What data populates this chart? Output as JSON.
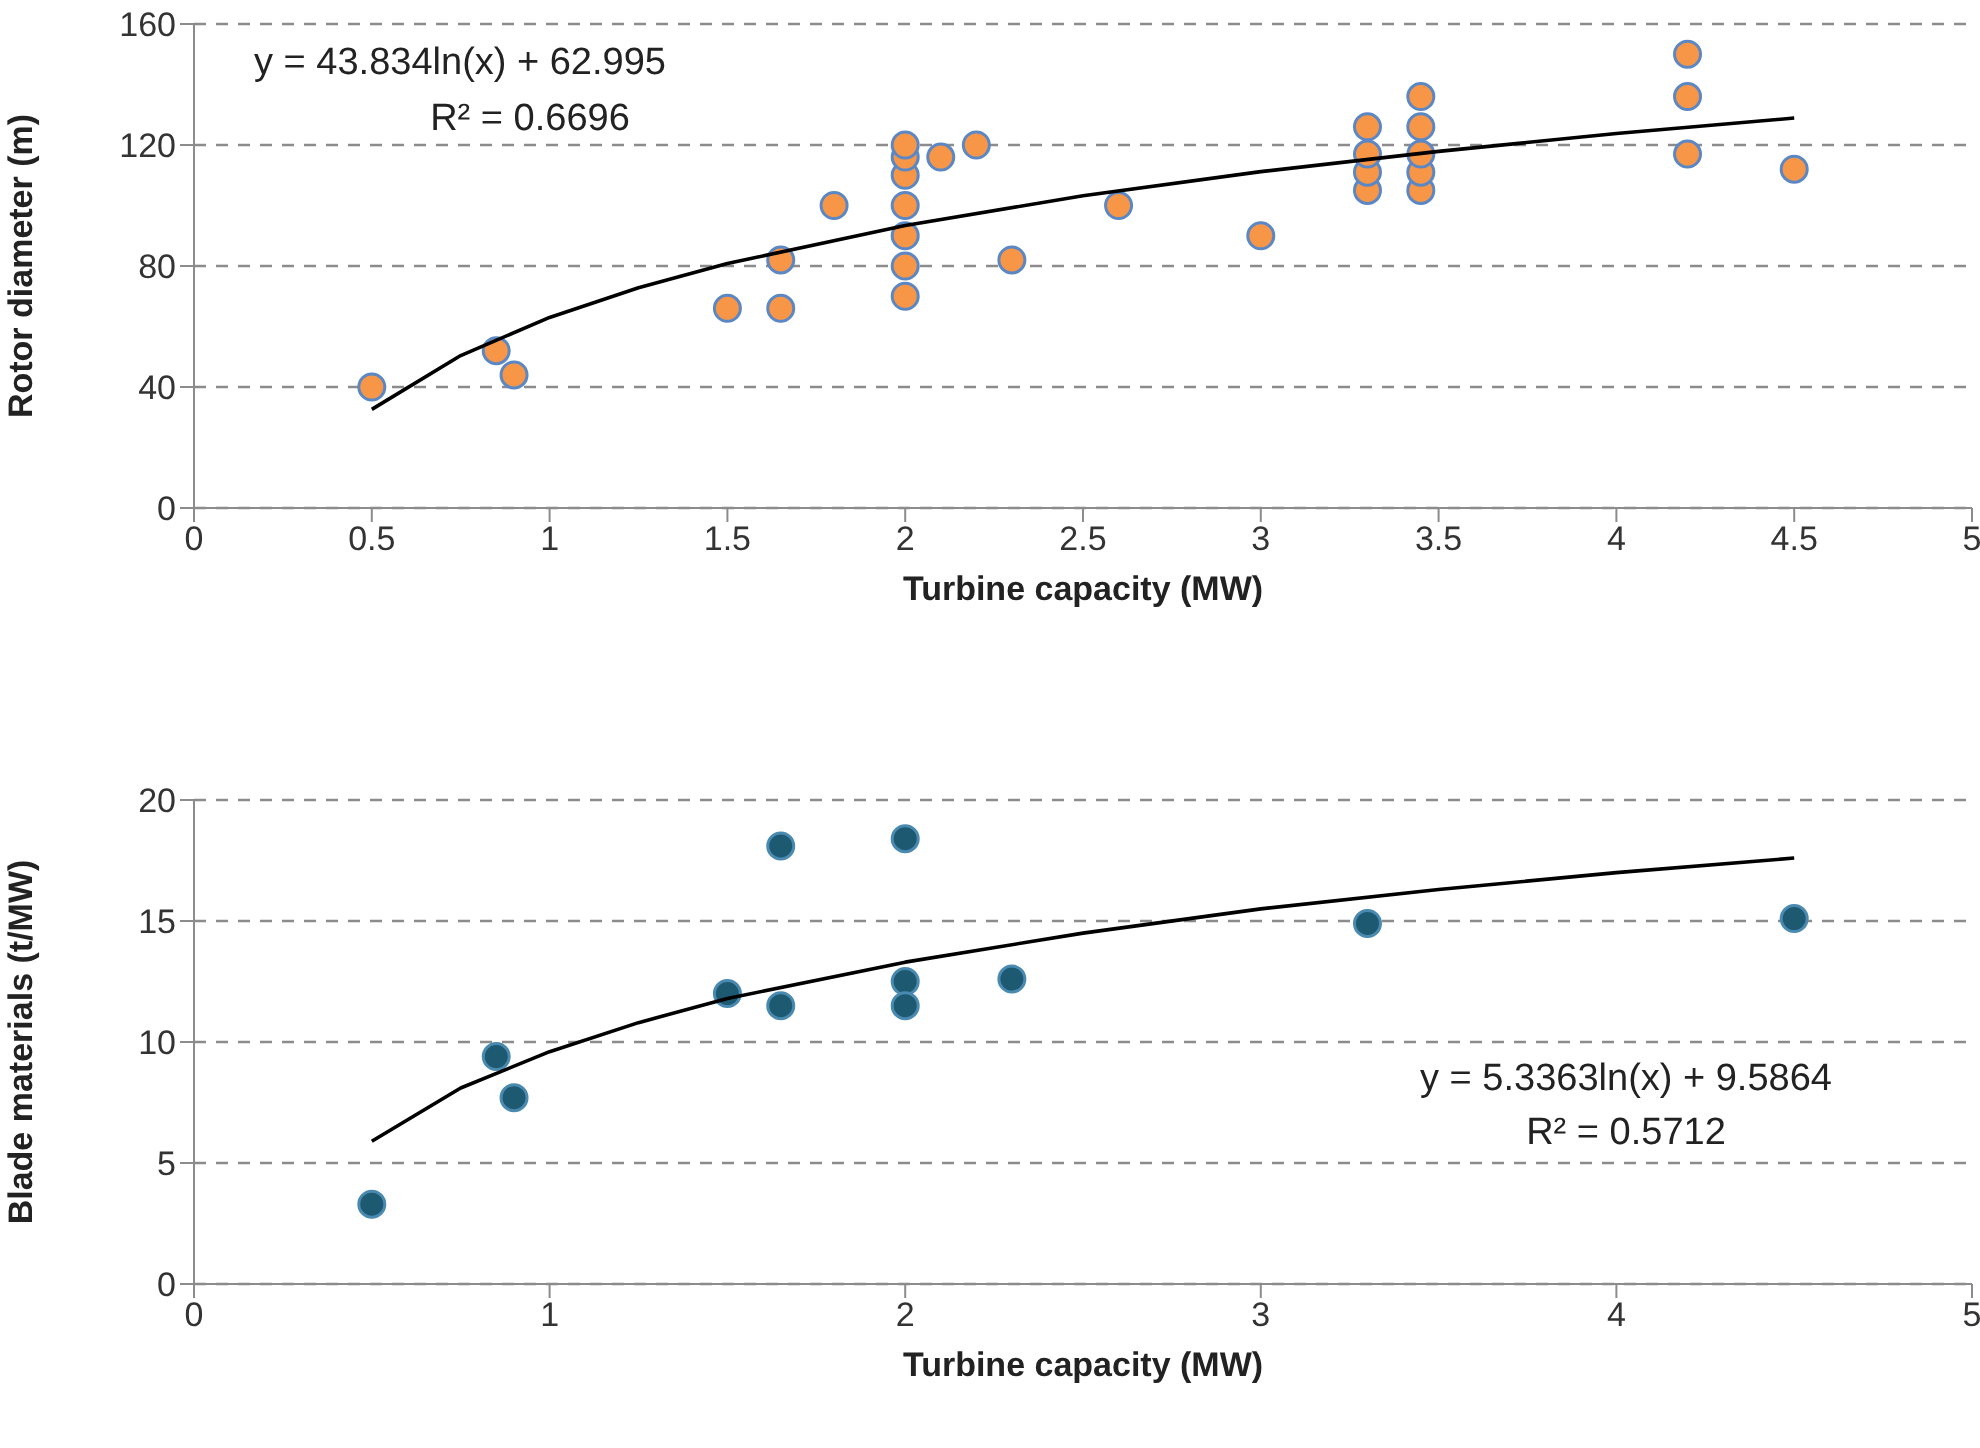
{
  "chart_data": [
    {
      "type": "scatter",
      "xlabel": "Turbine capacity (MW)",
      "ylabel": "Rotor diameter (m)",
      "xlim": [
        0,
        5
      ],
      "xticks": [
        0,
        0.5,
        1,
        1.5,
        2,
        2.5,
        3,
        3.5,
        4,
        4.5,
        5
      ],
      "ylim": [
        0,
        160
      ],
      "yticks": [
        0,
        40,
        80,
        120,
        160
      ],
      "grid": "y",
      "annotations": [
        "y = 43.834ln(x) + 62.995",
        "R² = 0.6696"
      ],
      "series": [
        {
          "marker": "circle",
          "color": "#f79646",
          "x": [
            0.5,
            0.85,
            0.9,
            1.5,
            1.65,
            1.65,
            1.8,
            2,
            2,
            2,
            2,
            2,
            2,
            2,
            2.1,
            2.2,
            2.3,
            2.6,
            3,
            3.3,
            3.3,
            3.3,
            3.3,
            3.45,
            3.45,
            3.45,
            3.45,
            3.45,
            4.2,
            4.2,
            4.2,
            4.5
          ],
          "values": [
            40,
            52,
            44,
            66,
            66,
            82,
            100,
            70,
            80,
            90,
            100,
            110,
            116,
            120,
            116,
            120,
            82,
            100,
            90,
            105,
            111,
            117,
            126,
            105,
            111,
            117,
            126,
            136,
            117,
            136,
            150,
            112
          ]
        },
        {
          "type": "line",
          "marker": "none",
          "color": "#000000",
          "x": [
            0.5,
            0.75,
            1,
            1.25,
            1.5,
            2,
            2.5,
            3,
            3.5,
            4,
            4.5
          ],
          "values": [
            32.6,
            50.4,
            63.0,
            72.8,
            80.8,
            93.4,
            103.2,
            111.2,
            117.9,
            123.8,
            128.9
          ]
        }
      ]
    },
    {
      "type": "scatter",
      "xlabel": "Turbine capacity (MW)",
      "ylabel": "Blade materials (t/MW)",
      "xlim": [
        0,
        5
      ],
      "xticks": [
        0,
        1,
        2,
        3,
        4,
        5
      ],
      "ylim": [
        0,
        20
      ],
      "yticks": [
        0,
        5,
        10,
        15,
        20
      ],
      "grid": "y",
      "annotations": [
        "y = 5.3363ln(x) + 9.5864",
        "R² = 0.5712"
      ],
      "series": [
        {
          "marker": "circle",
          "color": "#1d5a72",
          "x": [
            0.5,
            0.85,
            0.9,
            1.5,
            1.65,
            1.65,
            2,
            2,
            2,
            2.3,
            3.3,
            4.5
          ],
          "values": [
            3.3,
            9.4,
            7.7,
            12.0,
            18.1,
            11.5,
            18.4,
            12.5,
            11.5,
            12.6,
            14.9,
            15.1
          ]
        },
        {
          "type": "line",
          "marker": "none",
          "color": "#000000",
          "x": [
            0.5,
            0.75,
            1,
            1.25,
            1.5,
            2,
            2.5,
            3,
            3.5,
            4,
            4.5
          ],
          "values": [
            5.9,
            8.1,
            9.6,
            10.8,
            11.8,
            13.3,
            14.5,
            15.5,
            16.3,
            17.0,
            17.6
          ]
        }
      ]
    }
  ]
}
